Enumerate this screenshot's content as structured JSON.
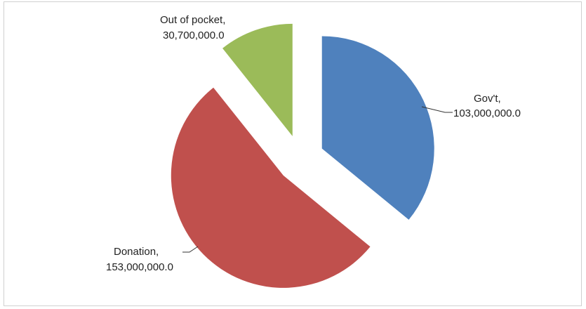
{
  "chart_data": {
    "type": "pie",
    "exploded": true,
    "start_angle_deg": 0,
    "slices": [
      {
        "name": "Gov't",
        "value": 103000000,
        "label_line1": "Gov't,",
        "label_line2": "103,000,000.0",
        "color": "#4f81bd"
      },
      {
        "name": "Donation",
        "value": 153000000,
        "label_line1": "Donation,",
        "label_line2": "153,000,000.0",
        "color": "#c0504d"
      },
      {
        "name": "Out of pocket",
        "value": 30700000,
        "label_line1": "Out of pocket,",
        "label_line2": "30,700,000.0",
        "color": "#9bbb59"
      }
    ],
    "title": "",
    "legend": "none",
    "data_labels": "outside-with-leader-lines"
  }
}
